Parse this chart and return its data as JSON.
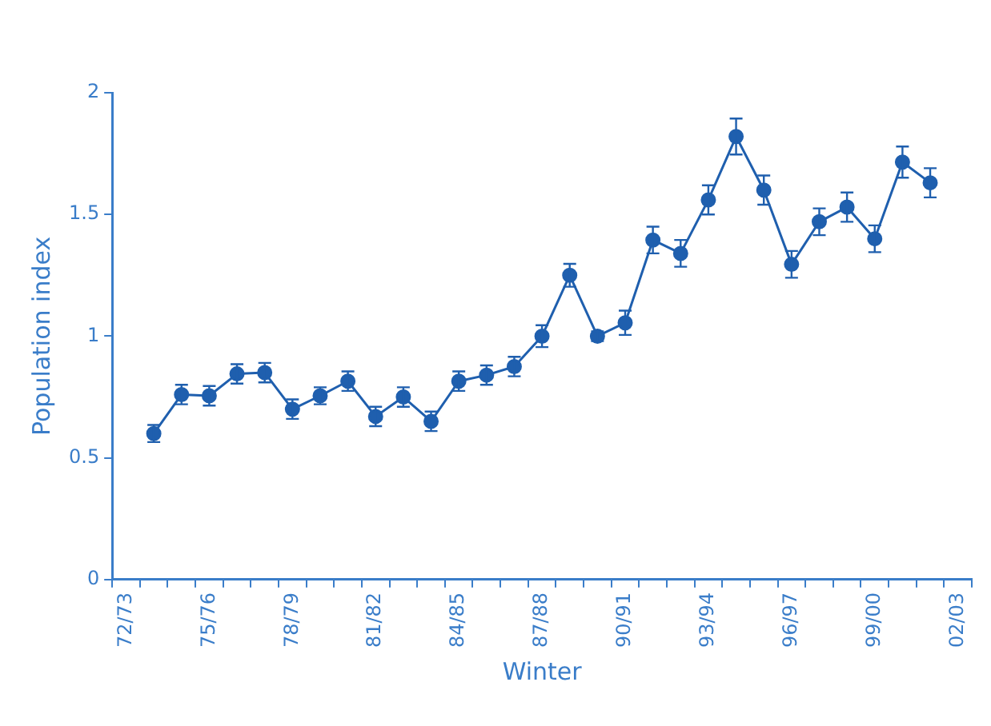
{
  "chart_data": {
    "type": "line",
    "xlabel": "Winter",
    "ylabel": "Population index",
    "categories": [
      "72/73",
      null,
      null,
      "75/76",
      null,
      null,
      "78/79",
      null,
      null,
      "81/82",
      null,
      null,
      "84/85",
      null,
      null,
      "87/88",
      null,
      null,
      "90/91",
      null,
      null,
      "93/94",
      null,
      null,
      "96/97",
      null,
      null,
      "99/00",
      null,
      null,
      "02/03"
    ],
    "series": [
      {
        "color": "#1f5fae",
        "values": [
          null,
          0.6,
          0.76,
          0.755,
          0.845,
          0.85,
          0.7,
          0.755,
          0.815,
          0.67,
          0.75,
          0.65,
          0.815,
          0.84,
          0.875,
          1.0,
          1.25,
          1.0,
          1.055,
          1.395,
          1.34,
          1.56,
          1.82,
          1.6,
          1.295,
          1.47,
          1.53,
          1.4,
          1.715,
          1.63,
          null
        ],
        "errors": [
          null,
          0.035,
          0.04,
          0.04,
          0.04,
          0.04,
          0.04,
          0.035,
          0.04,
          0.04,
          0.04,
          0.04,
          0.04,
          0.04,
          0.04,
          0.045,
          0.047,
          0.02,
          0.05,
          0.055,
          0.055,
          0.06,
          0.074,
          0.06,
          0.055,
          0.055,
          0.06,
          0.055,
          0.064,
          0.06,
          null
        ]
      }
    ],
    "ylim": [
      0,
      2
    ],
    "yticks": [
      0,
      0.5,
      1,
      1.5,
      2
    ],
    "grid": false,
    "legend": false,
    "marker": "circle",
    "line_style": "solid"
  }
}
